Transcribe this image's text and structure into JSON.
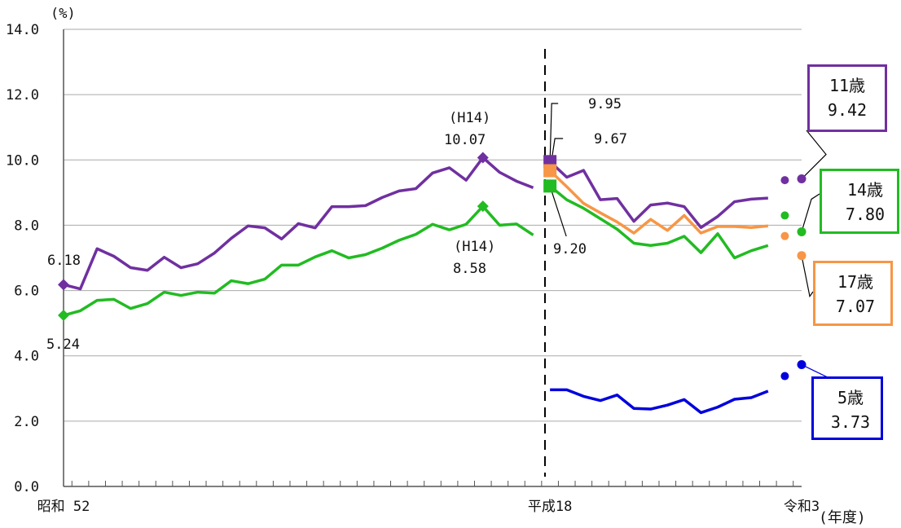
{
  "chart_data": {
    "type": "line",
    "y_unit": "(%)",
    "x_unit": "(年度)",
    "ylim": [
      0,
      14
    ],
    "yticks": [
      "0.0",
      "2.0",
      "4.0",
      "6.0",
      "8.0",
      "10.0",
      "12.0",
      "14.0"
    ],
    "x_labels": [
      {
        "index": 0,
        "text": "昭和 52"
      },
      {
        "index": 29,
        "text": "平成18"
      },
      {
        "index": 44,
        "text": "令和3"
      }
    ],
    "grid": true,
    "period_separator_index": 28.7,
    "colors": {
      "age11": "#7030a0",
      "age14": "#22bb22",
      "age17": "#f79646",
      "age5": "#0000dd"
    },
    "series": [
      {
        "key": "age11",
        "name": "11歳",
        "segments": [
          {
            "start": 0,
            "values": [
              6.18,
              6.05,
              7.28,
              7.05,
              6.7,
              6.62,
              7.02,
              6.7,
              6.82,
              7.15,
              7.6,
              7.98,
              7.92,
              7.58,
              8.05,
              7.92,
              8.57,
              8.57,
              8.6,
              8.85,
              9.05,
              9.12,
              9.6,
              9.76,
              9.38,
              10.07,
              9.62,
              9.35,
              9.15
            ]
          },
          {
            "start": 29,
            "values": [
              9.95,
              9.47,
              9.68,
              8.78,
              8.82,
              8.12,
              8.62,
              8.68,
              8.57,
              7.93,
              8.27,
              8.72,
              8.8,
              8.83
            ]
          }
        ],
        "final": {
          "index": 44,
          "value": 9.42
        },
        "prev_dot": {
          "index": 43,
          "value": 9.38
        }
      },
      {
        "key": "age14",
        "name": "14歳",
        "segments": [
          {
            "start": 0,
            "values": [
              5.24,
              5.38,
              5.7,
              5.73,
              5.45,
              5.6,
              5.95,
              5.85,
              5.95,
              5.92,
              6.3,
              6.21,
              6.35,
              6.78,
              6.78,
              7.03,
              7.22,
              7.0,
              7.1,
              7.3,
              7.54,
              7.72,
              8.03,
              7.86,
              8.03,
              8.58,
              8.0,
              8.04,
              7.7
            ]
          },
          {
            "start": 29,
            "values": [
              9.2,
              8.78,
              8.52,
              8.2,
              7.88,
              7.45,
              7.38,
              7.45,
              7.66,
              7.16,
              7.74,
              7.0,
              7.22,
              7.38
            ]
          }
        ],
        "final": {
          "index": 44,
          "value": 7.8
        },
        "prev_dot": {
          "index": 43,
          "value": 8.3
        }
      },
      {
        "key": "age17",
        "name": "17歳",
        "segments": [
          {
            "start": 29,
            "values": [
              9.67,
              9.18,
              8.67,
              8.38,
              8.1,
              7.76,
              8.18,
              7.84,
              8.3,
              7.76,
              7.96,
              7.96,
              7.93,
              7.98
            ]
          }
        ],
        "final": {
          "index": 44,
          "value": 7.07
        },
        "prev_dot": {
          "index": 43,
          "value": 7.67
        }
      },
      {
        "key": "age5",
        "name": "5歳",
        "segments": [
          {
            "start": 29,
            "values": [
              2.96,
              2.96,
              2.76,
              2.63,
              2.8,
              2.39,
              2.37,
              2.49,
              2.66,
              2.26,
              2.43,
              2.67,
              2.72,
              2.92
            ]
          }
        ],
        "final": {
          "index": 44,
          "value": 3.73
        },
        "prev_dot": {
          "index": 43,
          "value": 3.38
        }
      }
    ],
    "annotations": {
      "age11_start": "6.18",
      "age14_start": "5.24",
      "h14_11_era": "(H14)",
      "h14_11_value": "10.07",
      "h14_14_era": "(H14)",
      "h14_14_value": "8.58",
      "h18_11_value": "9.95",
      "h18_17_value": "9.67",
      "h18_14_value": "9.20"
    },
    "callouts": {
      "age11": {
        "label": "11歳",
        "value": "9.42"
      },
      "age14": {
        "label": "14歳",
        "value": "7.80"
      },
      "age17": {
        "label": "17歳",
        "value": "7.07"
      },
      "age5": {
        "label": "5歳",
        "value": "3.73"
      }
    }
  }
}
